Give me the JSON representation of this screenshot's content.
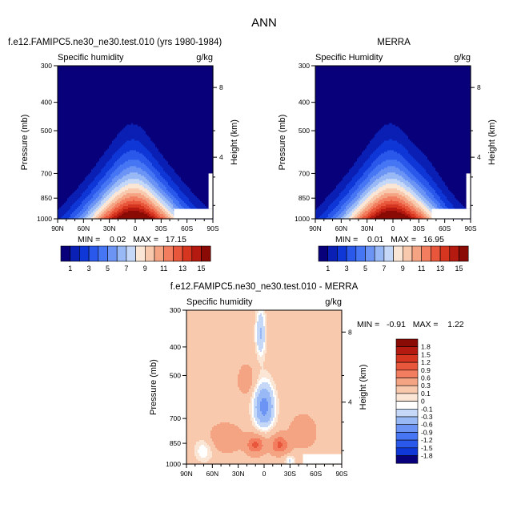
{
  "figure_title": "ANN",
  "panels": [
    {
      "title": "f.e12.FAMIPC5.ne30_ne30.test.010 (yrs 1980-1984)",
      "field_label": "Specific humidity",
      "units": "g/kg",
      "stats": "MIN =    0.02   MAX =   17.15",
      "min": 0.02,
      "max": 17.15
    },
    {
      "title": "MERRA",
      "field_label": "Specific Humidity",
      "units": "g/kg",
      "stats": "MIN =    0.01   MAX =   16.95",
      "min": 0.01,
      "max": 16.95
    },
    {
      "title": "f.e12.FAMIPC5.ne30_ne30.test.010 - MERRA",
      "field_label": "Specific humidity",
      "units": "g/kg",
      "stats": "MIN =   -0.91   MAX =    1.22",
      "min": -0.91,
      "max": 1.22
    }
  ],
  "axes": {
    "ylabel": "Pressure (mb)",
    "y2label": "Height (km)",
    "x_ticks": [
      "90N",
      "60N",
      "30N",
      "0",
      "30S",
      "60S",
      "90S"
    ],
    "y_ticks": [
      300,
      400,
      500,
      700,
      850,
      1000
    ],
    "y2_ticks": [
      8,
      4
    ]
  },
  "colorbar_abs": {
    "labels": [
      "1",
      "3",
      "5",
      "7",
      "9",
      "11",
      "13",
      "15"
    ],
    "colors": [
      "#08007a",
      "#0a1fb4",
      "#0f37d7",
      "#2a58ea",
      "#4676f3",
      "#6b94f5",
      "#98b8f6",
      "#c6d8f8",
      "#fbe6d6",
      "#f8c9ad",
      "#f5a483",
      "#f27d5f",
      "#e8563b",
      "#d6351f",
      "#b51a10",
      "#8a0a05"
    ]
  },
  "colorbar_diff": {
    "labels": [
      "1.8",
      "1.5",
      "1.2",
      "0.9",
      "0.6",
      "0.3",
      "0.1",
      "0",
      "-0.1",
      "-0.3",
      "-0.6",
      "-0.9",
      "-1.2",
      "-1.5",
      "-1.8"
    ],
    "colors": [
      "#8a0a05",
      "#b51a10",
      "#d6351f",
      "#e8563b",
      "#f27d5f",
      "#f5a483",
      "#f8c9ad",
      "#fbe6d6",
      "#ffffff",
      "#c6d8f8",
      "#98b8f6",
      "#6b94f5",
      "#4676f3",
      "#2a58ea",
      "#0f37d7",
      "#08007a"
    ]
  },
  "chart_data": [
    {
      "type": "heatmap",
      "title": "f.e12.FAMIPC5.ne30_ne30.test.010 (yrs 1980-1984)",
      "subtitle": "Specific humidity",
      "units": "g/kg",
      "xlabel": "",
      "ylabel": "Pressure (mb)",
      "y2label": "Height (km)",
      "x_ticks": [
        "90N",
        "60N",
        "30N",
        "0",
        "30S",
        "60S",
        "90S"
      ],
      "y_ticks": [
        300,
        400,
        500,
        700,
        850,
        1000
      ],
      "min": 0.02,
      "max": 17.15,
      "contour_levels": [
        1,
        2,
        3,
        4,
        5,
        6,
        7,
        8,
        9,
        10,
        11,
        12,
        13,
        14,
        15
      ],
      "peak": {
        "lat": 0,
        "pressure": 1000,
        "value": 17.15
      }
    },
    {
      "type": "heatmap",
      "title": "MERRA",
      "subtitle": "Specific Humidity",
      "units": "g/kg",
      "xlabel": "",
      "ylabel": "Pressure (mb)",
      "y2label": "Height (km)",
      "x_ticks": [
        "90N",
        "60N",
        "30N",
        "0",
        "30S",
        "60S",
        "90S"
      ],
      "y_ticks": [
        300,
        400,
        500,
        700,
        850,
        1000
      ],
      "min": 0.01,
      "max": 16.95,
      "contour_levels": [
        1,
        2,
        3,
        4,
        5,
        6,
        7,
        8,
        9,
        10,
        11,
        12,
        13,
        14,
        15
      ],
      "peak": {
        "lat": 0,
        "pressure": 1000,
        "value": 16.95
      }
    },
    {
      "type": "heatmap",
      "title": "f.e12.FAMIPC5.ne30_ne30.test.010 - MERRA",
      "subtitle": "Specific humidity",
      "units": "g/kg",
      "xlabel": "",
      "ylabel": "Pressure (mb)",
      "y2label": "Height (km)",
      "x_ticks": [
        "90N",
        "60N",
        "30N",
        "0",
        "30S",
        "60S",
        "90S"
      ],
      "y_ticks": [
        300,
        400,
        500,
        700,
        850,
        1000
      ],
      "min": -0.91,
      "max": 1.22,
      "contour_levels": [
        -1.8,
        -1.5,
        -1.2,
        -0.9,
        -0.6,
        -0.3,
        -0.1,
        0,
        0.1,
        0.3,
        0.6,
        0.9,
        1.2,
        1.5,
        1.8
      ]
    }
  ]
}
